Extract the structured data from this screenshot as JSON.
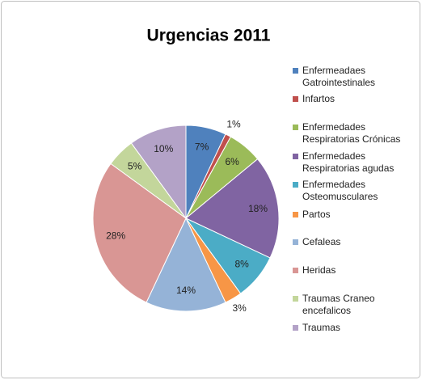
{
  "chart_data": {
    "type": "pie",
    "title": "Urgencias 2011",
    "categories": [
      "Enfermeadaes Gatrointestinales",
      "Infartos",
      "Enfermedades Respiratorias Crónicas",
      "Enfermedades Respiratorias agudas",
      "Enfermedades Osteomusculares",
      "Partos",
      "Cefaleas",
      "Heridas",
      "Traumas Craneo encefalicos",
      "Traumas"
    ],
    "values": [
      7,
      1,
      6,
      18,
      8,
      3,
      14,
      28,
      5,
      10
    ],
    "value_labels": [
      "7%",
      "1%",
      "6%",
      "18%",
      "8%",
      "3%",
      "14%",
      "28%",
      "5%",
      "10%"
    ],
    "colors": [
      "#4f81bd",
      "#c0504d",
      "#9bbb59",
      "#8064a2",
      "#4bacc6",
      "#f79646",
      "#95b3d7",
      "#d99694",
      "#c3d69b",
      "#b3a2c7"
    ],
    "legend": "right"
  }
}
